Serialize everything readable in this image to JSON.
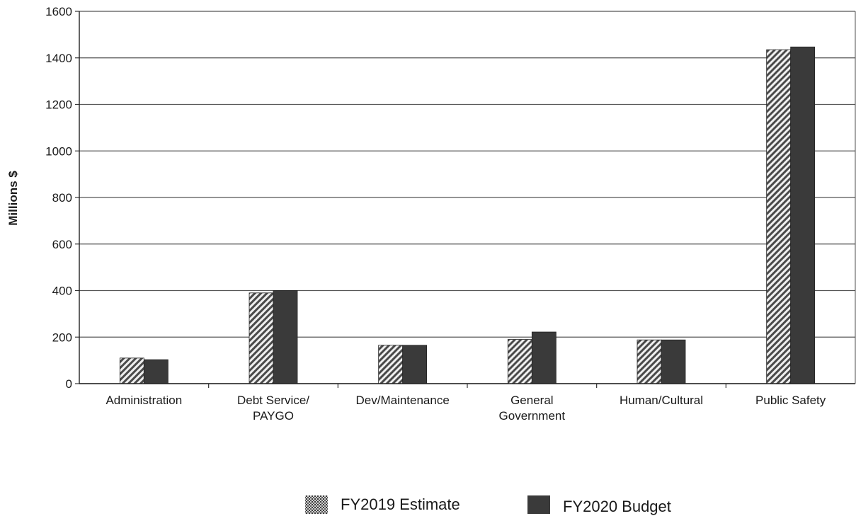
{
  "chart_data": {
    "type": "bar",
    "title": "",
    "xlabel": "",
    "ylabel": "Millions $",
    "ylim": [
      0,
      1600
    ],
    "yticks": [
      0,
      200,
      400,
      600,
      800,
      1000,
      1200,
      1400,
      1600
    ],
    "grid": true,
    "legend_position": "bottom",
    "categories": [
      [
        "Administration"
      ],
      [
        "Debt Service/",
        "PAYGO"
      ],
      [
        "Dev/Maintenance"
      ],
      [
        "General",
        "Government"
      ],
      [
        "Human/Cultural"
      ],
      [
        "Public Safety"
      ]
    ],
    "series": [
      {
        "name": "FY2019 Estimate",
        "pattern": "hatched",
        "color": "#6e6e6e",
        "values": [
          110,
          390,
          165,
          190,
          188,
          1435
        ]
      },
      {
        "name": "FY2020 Budget",
        "pattern": "solid",
        "color": "#3a3a3a",
        "values": [
          103,
          400,
          165,
          222,
          188,
          1447
        ]
      }
    ]
  }
}
